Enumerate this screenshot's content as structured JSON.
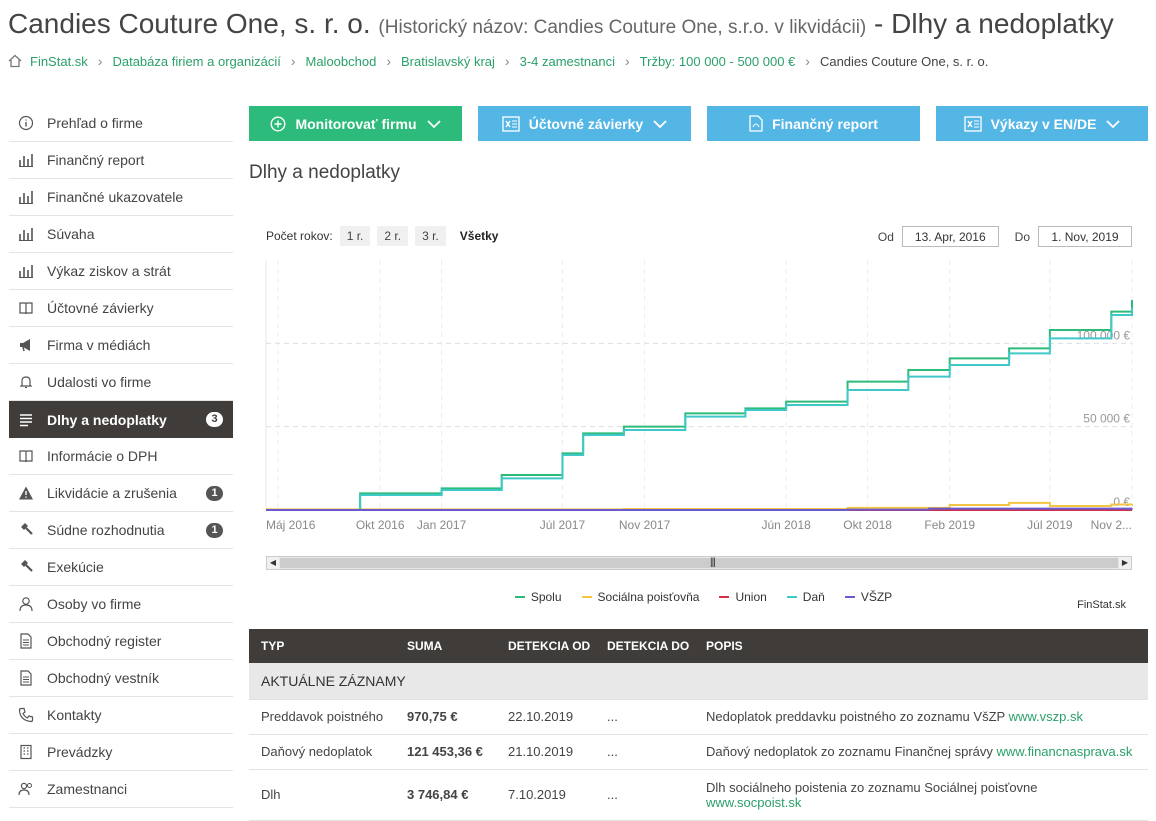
{
  "header": {
    "company": "Candies Couture One, s. r. o.",
    "historical": "(Historický názov: Candies Couture One, s.r.o. v likvidácii)",
    "suffix": "- Dlhy a nedoplatky"
  },
  "breadcrumb": [
    "FinStat.sk",
    "Databáza firiem a organizácií",
    "Maloobchod",
    "Bratislavský kraj",
    "3-4 zamestnanci",
    "Tržby: 100 000 - 500 000 €"
  ],
  "breadcrumb_current": "Candies Couture One, s. r. o.",
  "sidebar": {
    "items": [
      {
        "label": "Prehľad o firme",
        "icon": "info-icon"
      },
      {
        "label": "Finančný report",
        "icon": "bar-chart-icon"
      },
      {
        "label": "Finančné ukazovatele",
        "icon": "bar-chart-icon"
      },
      {
        "label": "Súvaha",
        "icon": "bar-chart-icon"
      },
      {
        "label": "Výkaz ziskov a strát",
        "icon": "bar-chart-icon"
      },
      {
        "label": "Účtovné závierky",
        "icon": "book-icon"
      },
      {
        "label": "Firma v médiách",
        "icon": "megaphone-icon"
      },
      {
        "label": "Udalosti vo firme",
        "icon": "bell-icon"
      },
      {
        "label": "Dlhy a nedoplatky",
        "icon": "list-icon",
        "badge": "3",
        "active": true
      },
      {
        "label": "Informácie o DPH",
        "icon": "book-icon"
      },
      {
        "label": "Likvidácie a zrušenia",
        "icon": "warning-icon",
        "badge": "1"
      },
      {
        "label": "Súdne rozhodnutia",
        "icon": "gavel-icon",
        "badge": "1"
      },
      {
        "label": "Exekúcie",
        "icon": "gavel-icon"
      },
      {
        "label": "Osoby vo firme",
        "icon": "person-icon"
      },
      {
        "label": "Obchodný register",
        "icon": "document-icon"
      },
      {
        "label": "Obchodný vestník",
        "icon": "document-icon"
      },
      {
        "label": "Kontakty",
        "icon": "phone-icon"
      },
      {
        "label": "Prevádzky",
        "icon": "building-icon"
      },
      {
        "label": "Zamestnanci",
        "icon": "people-icon"
      }
    ]
  },
  "buttons": {
    "monitor": "Monitorovať firmu",
    "statements": "Účtovné závierky",
    "report": "Finančný report",
    "en_de": "Výkazy v EN/DE"
  },
  "section_title": "Dlhy a nedoplatky",
  "chart_controls": {
    "years_label": "Počet rokov:",
    "options": [
      "1 r.",
      "2 r.",
      "3 r.",
      "Všetky"
    ],
    "selected": "Všetky",
    "from_label": "Od",
    "from_value": "13. Apr, 2016",
    "to_label": "Do",
    "to_value": "1. Nov, 2019"
  },
  "chart_data": {
    "type": "line",
    "x_ticks": [
      "Máj 2016",
      "Okt 2016",
      "Jan 2017",
      "Júl 2017",
      "Nov 2017",
      "Jún 2018",
      "Okt 2018",
      "Feb 2019",
      "Júl 2019",
      "Nov 2..."
    ],
    "y_ticks": [
      "0 €",
      "50 000 €",
      "100 000 €"
    ],
    "ylim": [
      0,
      150000
    ],
    "grid": true,
    "series": [
      {
        "name": "Spolu",
        "color": "#2dbb7b",
        "x": [
          "2016-04",
          "2016-08",
          "2016-09",
          "2017-01",
          "2017-04",
          "2017-07",
          "2017-08",
          "2017-10",
          "2018-01",
          "2018-04",
          "2018-06",
          "2018-09",
          "2018-12",
          "2019-02",
          "2019-05",
          "2019-07",
          "2019-10",
          "2019-11"
        ],
        "values": [
          0,
          0,
          10000,
          13000,
          21000,
          34000,
          46000,
          50000,
          58000,
          61000,
          65000,
          77000,
          84000,
          91000,
          97000,
          108000,
          119000,
          126000
        ]
      },
      {
        "name": "Sociálna poisťovňa",
        "color": "#f4c542",
        "x": [
          "2016-04",
          "2017-10",
          "2018-09",
          "2019-02",
          "2019-05",
          "2019-07",
          "2019-10",
          "2019-11"
        ],
        "values": [
          400,
          600,
          1300,
          3000,
          4300,
          2400,
          3300,
          3700
        ]
      },
      {
        "name": "Union",
        "color": "#d0304a",
        "x": [
          "2016-04",
          "2019-11"
        ],
        "values": [
          0,
          0
        ]
      },
      {
        "name": "Daň",
        "color": "#40c8c8",
        "x": [
          "2016-04",
          "2016-08",
          "2016-09",
          "2017-01",
          "2017-04",
          "2017-07",
          "2017-08",
          "2017-10",
          "2018-01",
          "2018-04",
          "2018-06",
          "2018-09",
          "2018-12",
          "2019-02",
          "2019-05",
          "2019-07",
          "2019-10",
          "2019-11"
        ],
        "values": [
          0,
          0,
          9000,
          12000,
          19000,
          33000,
          45000,
          48000,
          56000,
          60000,
          63000,
          72000,
          80000,
          87000,
          94000,
          103000,
          117000,
          121400
        ]
      },
      {
        "name": "VŠZP",
        "color": "#6a5acd",
        "x": [
          "2016-04",
          "2018-09",
          "2019-01",
          "2019-11"
        ],
        "values": [
          0,
          200,
          800,
          970
        ]
      }
    ],
    "credit": "FinStat.sk"
  },
  "table": {
    "headers": [
      "TYP",
      "SUMA",
      "DETEKCIA OD",
      "DETEKCIA DO",
      "POPIS"
    ],
    "section": "AKTUÁLNE ZÁZNAMY",
    "rows": [
      {
        "typ": "Preddavok poistného",
        "suma": "970,75 €",
        "od": "22.10.2019",
        "do": "...",
        "popis": "Nedoplatok preddavku poistného zo zoznamu VšZP",
        "link": "www.vszp.sk"
      },
      {
        "typ": "Daňový nedoplatok",
        "suma": "121 453,36 €",
        "od": "21.10.2019",
        "do": "...",
        "popis": "Daňový nedoplatok zo zoznamu Finančnej správy",
        "link": "www.financnasprava.sk"
      },
      {
        "typ": "Dlh",
        "suma": "3 746,84 €",
        "od": "7.10.2019",
        "do": "...",
        "popis": "Dlh sociálneho poistenia zo zoznamu Sociálnej poisťovne",
        "link": "www.socpoist.sk"
      }
    ]
  }
}
